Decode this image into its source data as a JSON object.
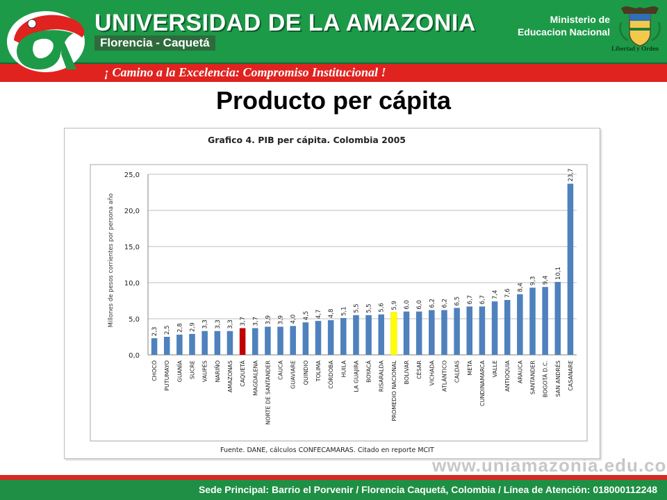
{
  "header": {
    "university_name": "UNIVERSIDAD DE LA AMAZONIA",
    "city": "Florencia - Caquetá",
    "slogan": "¡ Camino a la Excelencia: Compromiso Institucional !",
    "ministry_line1": "Ministerio de",
    "ministry_line2": "Educacion Nacional",
    "crest_motto": "Libertad y Orden",
    "logo_icon": "university-logo-icon",
    "crest_icon": "colombia-coat-of-arms-icon"
  },
  "page": {
    "title": "Producto per cápita"
  },
  "chart_data": {
    "type": "bar",
    "title": "Grafico 4.  PIB per cápita. Colombia 2005",
    "ylabel": "Millones de pesos corrientes por persona año",
    "xlabel": "",
    "ylim": [
      0,
      25
    ],
    "yticks": [
      "0,0",
      "5,0",
      "10,0",
      "15,0",
      "20,0",
      "25,0"
    ],
    "ytick_values": [
      0,
      5,
      10,
      15,
      20,
      25
    ],
    "grid": true,
    "source": "Fuente. DANE, cálculos CONFECAMARAS.  Citado en reporte MCIT",
    "categories": [
      "CHOCÓ",
      "PUTUMAYO",
      "GUANÍA",
      "SUCRE",
      "VAUPÉS",
      "NARIÑO",
      "AMAZONAS",
      "CAQUETÁ",
      "MAGDALENA",
      "NORTE DE SANTANDER",
      "CAUCA",
      "GUAVIARE",
      "QUINDIO",
      "TOLIMA",
      "CÓRDOBA",
      "HUILA",
      "LA GUAJIRA",
      "BOYACÁ",
      "RISARALDA",
      "PROMEDIO NACIONAL",
      "BOLIVAR",
      "CÉSAR",
      "VICHADA",
      "ATLÁNTICO",
      "CALDAS",
      "META",
      "CUNDINAMARCA",
      "VALLE",
      "ANTIOQUIA",
      "ARAUCA",
      "SANTANDER",
      "BOGOTÁ D.C.",
      "SAN ANDRÉS",
      "CASANARE"
    ],
    "values": [
      2.3,
      2.5,
      2.8,
      2.9,
      3.3,
      3.3,
      3.3,
      3.7,
      3.7,
      3.9,
      3.9,
      4.0,
      4.5,
      4.7,
      4.8,
      5.1,
      5.5,
      5.5,
      5.6,
      5.9,
      6.0,
      6.0,
      6.2,
      6.2,
      6.5,
      6.7,
      6.7,
      7.4,
      7.6,
      8.4,
      9.3,
      9.4,
      10.1,
      23.7
    ],
    "value_labels": [
      "2,3",
      "2,5",
      "2,8",
      "2,9",
      "3,3",
      "3,3",
      "3,3",
      "3,7",
      "3,7",
      "3,9",
      "3,9",
      "4,0",
      "4,5",
      "4,7",
      "4,8",
      "5,1",
      "5,5",
      "5,5",
      "5,6",
      "5,9",
      "6,0",
      "6,0",
      "6,2",
      "6,2",
      "6,5",
      "6,7",
      "6,7",
      "7,4",
      "7,6",
      "8,4",
      "9,3",
      "9,4",
      "10,1",
      "23,7"
    ],
    "colors": {
      "default": "#4f81bd",
      "CAQUETÁ": "#c00000",
      "PROMEDIO NACIONAL": "#ffff00",
      "grid": "#bfbfbf"
    }
  },
  "watermark": "www.uniamazonia.edu.co",
  "footer": {
    "text": "Sede Principal: Barrio el Porvenir  /  Florencia Caquetá, Colombia  /  Línea de Atención: 018000112248"
  }
}
